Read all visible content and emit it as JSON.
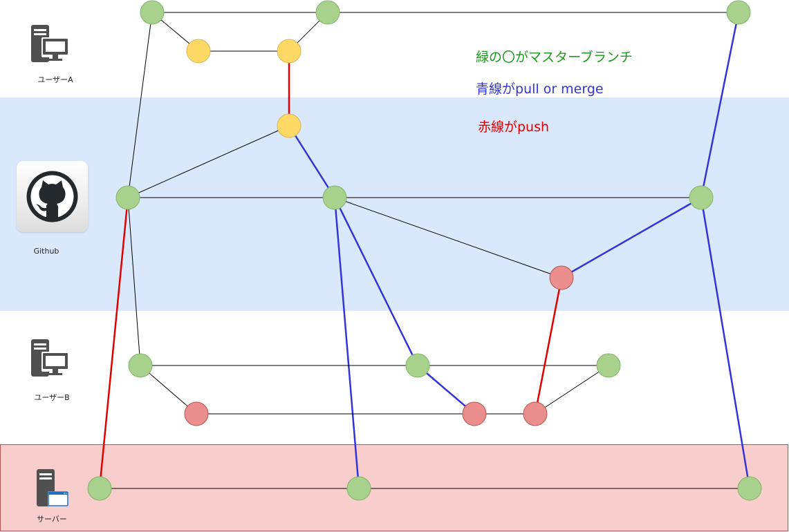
{
  "lanes": {
    "user_a": {
      "label": "ユーザーA"
    },
    "github": {
      "label": "Github",
      "color": "#dae8fc"
    },
    "user_b": {
      "label": "ユーザーB"
    },
    "server": {
      "label": "サーバー",
      "color": "#f8cecc"
    }
  },
  "legend": {
    "master": {
      "text": "緑の〇がマスターブランチ",
      "color": "#1a9a1a"
    },
    "pull": {
      "text": "青線がpull or merge",
      "color": "#3333dd"
    },
    "push": {
      "text": "赤線がpush",
      "color": "#e00000"
    }
  },
  "colors": {
    "green_fill": "#a9d18e",
    "green_stroke": "#82b366",
    "yellow_fill": "#ffd966",
    "yellow_stroke": "#d6b656",
    "red_fill": "#ea8e8e",
    "red_stroke": "#b85450",
    "edge_black": "#000000",
    "edge_blue": "#3333dd",
    "edge_red": "#e00000"
  },
  "icons": [
    "server-desktop-icon",
    "github-octocat-icon",
    "server-window-icon"
  ],
  "graph": {
    "nodes": [
      {
        "id": "a1",
        "lane": "user_a",
        "kind": "green"
      },
      {
        "id": "a2",
        "lane": "user_a",
        "kind": "green"
      },
      {
        "id": "a3",
        "lane": "user_a",
        "kind": "green"
      },
      {
        "id": "ay1",
        "lane": "user_a",
        "kind": "yellow"
      },
      {
        "id": "ay2",
        "lane": "user_a",
        "kind": "yellow"
      },
      {
        "id": "gy",
        "lane": "github",
        "kind": "yellow"
      },
      {
        "id": "g1",
        "lane": "github",
        "kind": "green"
      },
      {
        "id": "g2",
        "lane": "github",
        "kind": "green"
      },
      {
        "id": "g3",
        "lane": "github",
        "kind": "green"
      },
      {
        "id": "gr",
        "lane": "github",
        "kind": "red"
      },
      {
        "id": "b1",
        "lane": "user_b",
        "kind": "green"
      },
      {
        "id": "b2",
        "lane": "user_b",
        "kind": "green"
      },
      {
        "id": "b3",
        "lane": "user_b",
        "kind": "green"
      },
      {
        "id": "br1",
        "lane": "user_b",
        "kind": "red"
      },
      {
        "id": "br2",
        "lane": "user_b",
        "kind": "red"
      },
      {
        "id": "br3",
        "lane": "user_b",
        "kind": "red"
      },
      {
        "id": "s1",
        "lane": "server",
        "kind": "green"
      },
      {
        "id": "s2",
        "lane": "server",
        "kind": "green"
      },
      {
        "id": "s3",
        "lane": "server",
        "kind": "green"
      }
    ],
    "edges": [
      {
        "from": "a1",
        "to": "a2",
        "type": "black"
      },
      {
        "from": "a2",
        "to": "a3",
        "type": "black"
      },
      {
        "from": "a1",
        "to": "ay1",
        "type": "black"
      },
      {
        "from": "ay1",
        "to": "ay2",
        "type": "black"
      },
      {
        "from": "ay2",
        "to": "a2",
        "type": "black"
      },
      {
        "from": "a1",
        "to": "g1",
        "type": "black"
      },
      {
        "from": "ay2",
        "to": "gy",
        "type": "red"
      },
      {
        "from": "gy",
        "to": "g1",
        "type": "black"
      },
      {
        "from": "gy",
        "to": "g2",
        "type": "blue"
      },
      {
        "from": "g1",
        "to": "g2",
        "type": "black"
      },
      {
        "from": "g2",
        "to": "g3",
        "type": "black"
      },
      {
        "from": "g2",
        "to": "gr",
        "type": "black"
      },
      {
        "from": "gr",
        "to": "g3",
        "type": "blue"
      },
      {
        "from": "a3",
        "to": "g3",
        "type": "blue"
      },
      {
        "from": "g1",
        "to": "b1",
        "type": "black"
      },
      {
        "from": "g1",
        "to": "s1",
        "type": "red"
      },
      {
        "from": "g2",
        "to": "b2",
        "type": "blue"
      },
      {
        "from": "g2",
        "to": "s2",
        "type": "blue"
      },
      {
        "from": "g3",
        "to": "s3",
        "type": "blue"
      },
      {
        "from": "b1",
        "to": "b2",
        "type": "black"
      },
      {
        "from": "b2",
        "to": "b3",
        "type": "black"
      },
      {
        "from": "b1",
        "to": "br1",
        "type": "black"
      },
      {
        "from": "br1",
        "to": "br2",
        "type": "black"
      },
      {
        "from": "b2",
        "to": "br2",
        "type": "blue"
      },
      {
        "from": "br2",
        "to": "br3",
        "type": "black"
      },
      {
        "from": "br3",
        "to": "b3",
        "type": "black"
      },
      {
        "from": "br3",
        "to": "gr",
        "type": "red"
      },
      {
        "from": "s1",
        "to": "s2",
        "type": "black"
      },
      {
        "from": "s2",
        "to": "s3",
        "type": "black"
      }
    ]
  }
}
